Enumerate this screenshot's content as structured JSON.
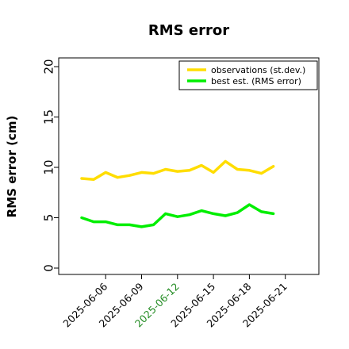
{
  "chart_data": {
    "type": "line",
    "title": "RMS error",
    "ylabel": "RMS error (cm)",
    "xlabel": "",
    "ylim": [
      0,
      20
    ],
    "yticks": [
      0,
      5,
      10,
      15,
      20
    ],
    "x": [
      "2025-06-04",
      "2025-06-05",
      "2025-06-06",
      "2025-06-07",
      "2025-06-08",
      "2025-06-09",
      "2025-06-10",
      "2025-06-11",
      "2025-06-12",
      "2025-06-13",
      "2025-06-14",
      "2025-06-15",
      "2025-06-16",
      "2025-06-17",
      "2025-06-18",
      "2025-06-19",
      "2025-06-20",
      "2025-06-21"
    ],
    "xticks": [
      "2025-06-06",
      "2025-06-09",
      "2025-06-12",
      "2025-06-15",
      "2025-06-18",
      "2025-06-21"
    ],
    "highlight_tick": "2025-06-12",
    "highlight_tick_color": "#228b22",
    "series": [
      {
        "name": "observations (st.dev.)",
        "color": "#ffdd00",
        "values": [
          8.9,
          8.8,
          9.5,
          9.0,
          9.2,
          9.5,
          9.4,
          9.8,
          9.6,
          9.7,
          10.2,
          9.5,
          10.6,
          9.8,
          9.7,
          9.4,
          10.1,
          null
        ]
      },
      {
        "name": "best est. (RMS error)",
        "color": "#00ee00",
        "values": [
          5.0,
          4.6,
          4.6,
          4.3,
          4.3,
          4.1,
          4.3,
          5.4,
          5.1,
          5.3,
          5.7,
          5.4,
          5.2,
          5.5,
          6.3,
          5.6,
          5.4,
          null
        ]
      }
    ],
    "legend_position": "top-right",
    "grid": false
  }
}
